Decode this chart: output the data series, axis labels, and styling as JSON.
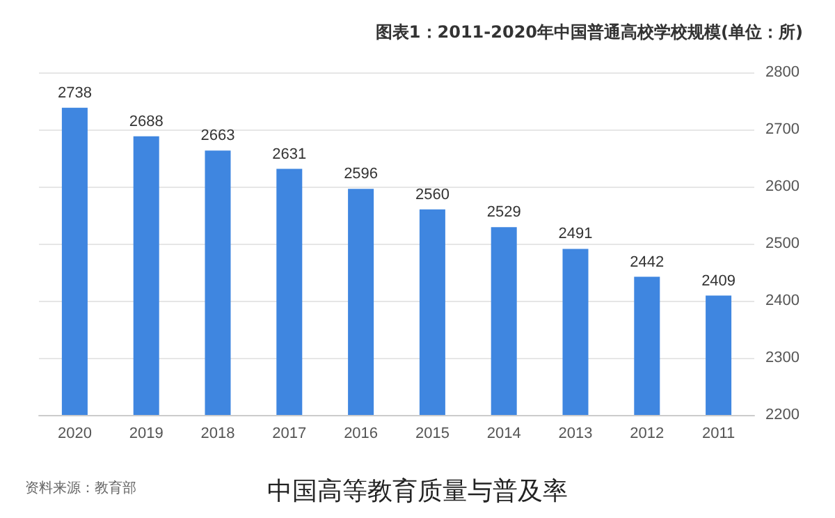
{
  "chart_data": {
    "type": "bar",
    "title": "图表1：2011-2020年中国普通高校学校规模(单位：所)",
    "categories": [
      "2020",
      "2019",
      "2018",
      "2017",
      "2016",
      "2015",
      "2014",
      "2013",
      "2012",
      "2011"
    ],
    "values": [
      2738,
      2688,
      2663,
      2631,
      2596,
      2560,
      2529,
      2491,
      2442,
      2409
    ],
    "color": "#3f86e0",
    "ylim": [
      2200,
      2800
    ],
    "yticks": [
      2200,
      2300,
      2400,
      2500,
      2600,
      2700,
      2800
    ],
    "grid": "y",
    "data_labels": true,
    "annotations": [
      "资料来源：教育部",
      "中国高等教育质量与普及率"
    ]
  }
}
